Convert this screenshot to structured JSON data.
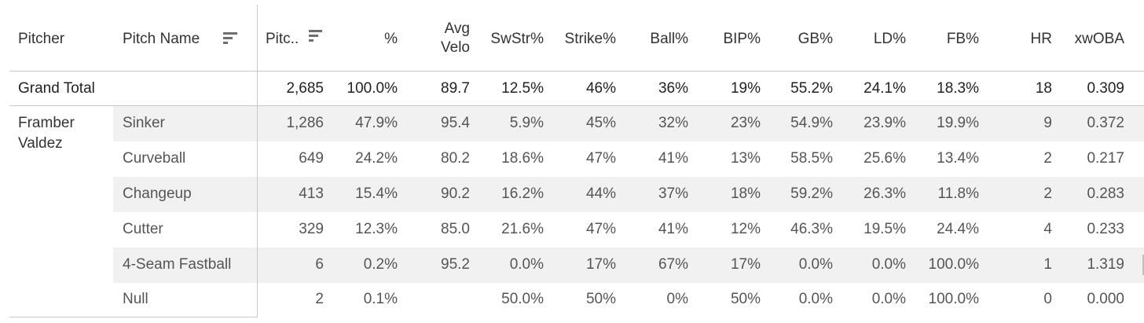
{
  "columns": {
    "pitcher": "Pitcher",
    "pitch_name": "Pitch Name",
    "pitches": "Pitc..",
    "pct": "%",
    "avg_velo_line1": "Avg",
    "avg_velo_line2": "Velo",
    "swstr": "SwStr%",
    "strike": "Strike%",
    "ball": "Ball%",
    "bip": "BIP%",
    "gb": "GB%",
    "ld": "LD%",
    "fb": "FB%",
    "hr": "HR",
    "xwoba": "xwOBA"
  },
  "icons": {
    "pitch_name_sort": "sort-descending-icon",
    "pitches_sort": "sort-descending-icon"
  },
  "grand_total": {
    "label": "Grand Total",
    "pitches": "2,685",
    "pct": "100.0%",
    "avg_velo": "89.7",
    "swstr": "12.5%",
    "strike": "46%",
    "ball": "36%",
    "bip": "19%",
    "gb": "55.2%",
    "ld": "24.1%",
    "fb": "18.3%",
    "hr": "18",
    "xwoba": "0.309"
  },
  "pitcher": "Framber Valdez",
  "rows": [
    {
      "pitch": "Sinker",
      "pitches": "1,286",
      "pct": "47.9%",
      "avg_velo": "95.4",
      "swstr": "5.9%",
      "strike": "45%",
      "ball": "32%",
      "bip": "23%",
      "gb": "54.9%",
      "ld": "23.9%",
      "fb": "19.9%",
      "hr": "9",
      "xwoba": "0.372"
    },
    {
      "pitch": "Curveball",
      "pitches": "649",
      "pct": "24.2%",
      "avg_velo": "80.2",
      "swstr": "18.6%",
      "strike": "47%",
      "ball": "41%",
      "bip": "13%",
      "gb": "58.5%",
      "ld": "25.6%",
      "fb": "13.4%",
      "hr": "2",
      "xwoba": "0.217"
    },
    {
      "pitch": "Changeup",
      "pitches": "413",
      "pct": "15.4%",
      "avg_velo": "90.2",
      "swstr": "16.2%",
      "strike": "44%",
      "ball": "37%",
      "bip": "18%",
      "gb": "59.2%",
      "ld": "26.3%",
      "fb": "11.8%",
      "hr": "2",
      "xwoba": "0.283"
    },
    {
      "pitch": "Cutter",
      "pitches": "329",
      "pct": "12.3%",
      "avg_velo": "85.0",
      "swstr": "21.6%",
      "strike": "47%",
      "ball": "41%",
      "bip": "12%",
      "gb": "46.3%",
      "ld": "19.5%",
      "fb": "24.4%",
      "hr": "4",
      "xwoba": "0.233"
    },
    {
      "pitch": "4-Seam Fastball",
      "pitches": "6",
      "pct": "0.2%",
      "avg_velo": "95.2",
      "swstr": "0.0%",
      "strike": "17%",
      "ball": "67%",
      "bip": "17%",
      "gb": "0.0%",
      "ld": "0.0%",
      "fb": "100.0%",
      "hr": "1",
      "xwoba": "1.319"
    },
    {
      "pitch": "Null",
      "pitches": "2",
      "pct": "0.1%",
      "avg_velo": "",
      "swstr": "50.0%",
      "strike": "50%",
      "ball": "0%",
      "bip": "50%",
      "gb": "0.0%",
      "ld": "0.0%",
      "fb": "100.0%",
      "hr": "0",
      "xwoba": "0.000"
    }
  ]
}
